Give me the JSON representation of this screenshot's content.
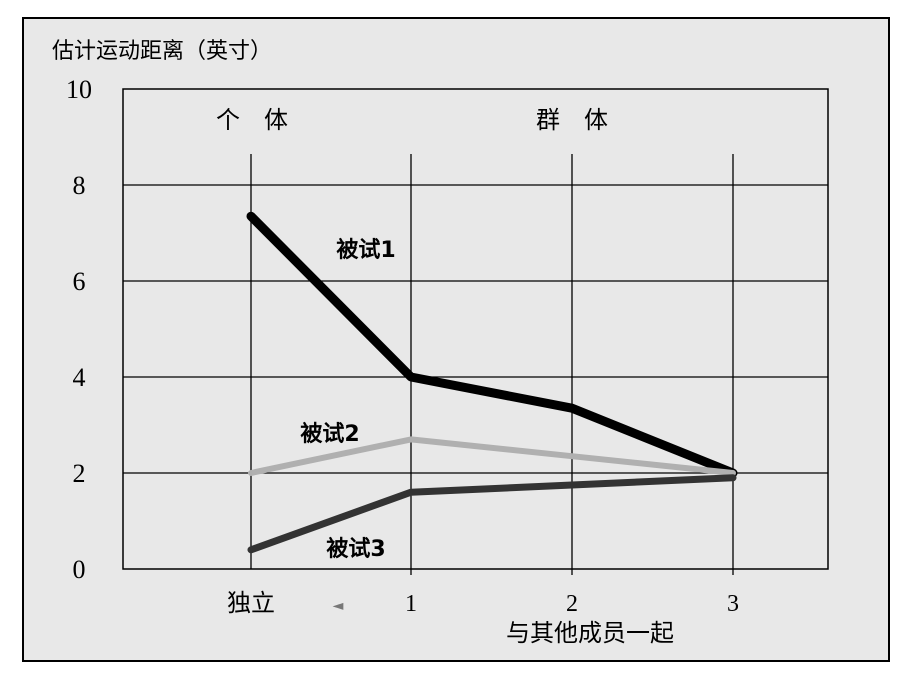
{
  "chart_data": {
    "type": "line",
    "title": "",
    "ylabel": "估计运动距离（英寸）",
    "xlabel": "与其他成员一起",
    "ylim": [
      0,
      10
    ],
    "yticks": [
      "0",
      "2",
      "4",
      "6",
      "8",
      "10"
    ],
    "x_categories": [
      "独立",
      "1",
      "2",
      "3"
    ],
    "arrow_glyph": "◄",
    "header_left": "个　体",
    "header_right": "群　体",
    "series": [
      {
        "name": "被试1",
        "color": "#000000",
        "values": [
          7.35,
          4.0,
          3.35,
          2.0
        ]
      },
      {
        "name": "被试2",
        "color": "#b0b0b0",
        "values": [
          2.0,
          2.7,
          2.35,
          2.0
        ]
      },
      {
        "name": "被试3",
        "color": "#333333",
        "values": [
          0.4,
          1.6,
          1.75,
          1.9
        ]
      }
    ]
  }
}
